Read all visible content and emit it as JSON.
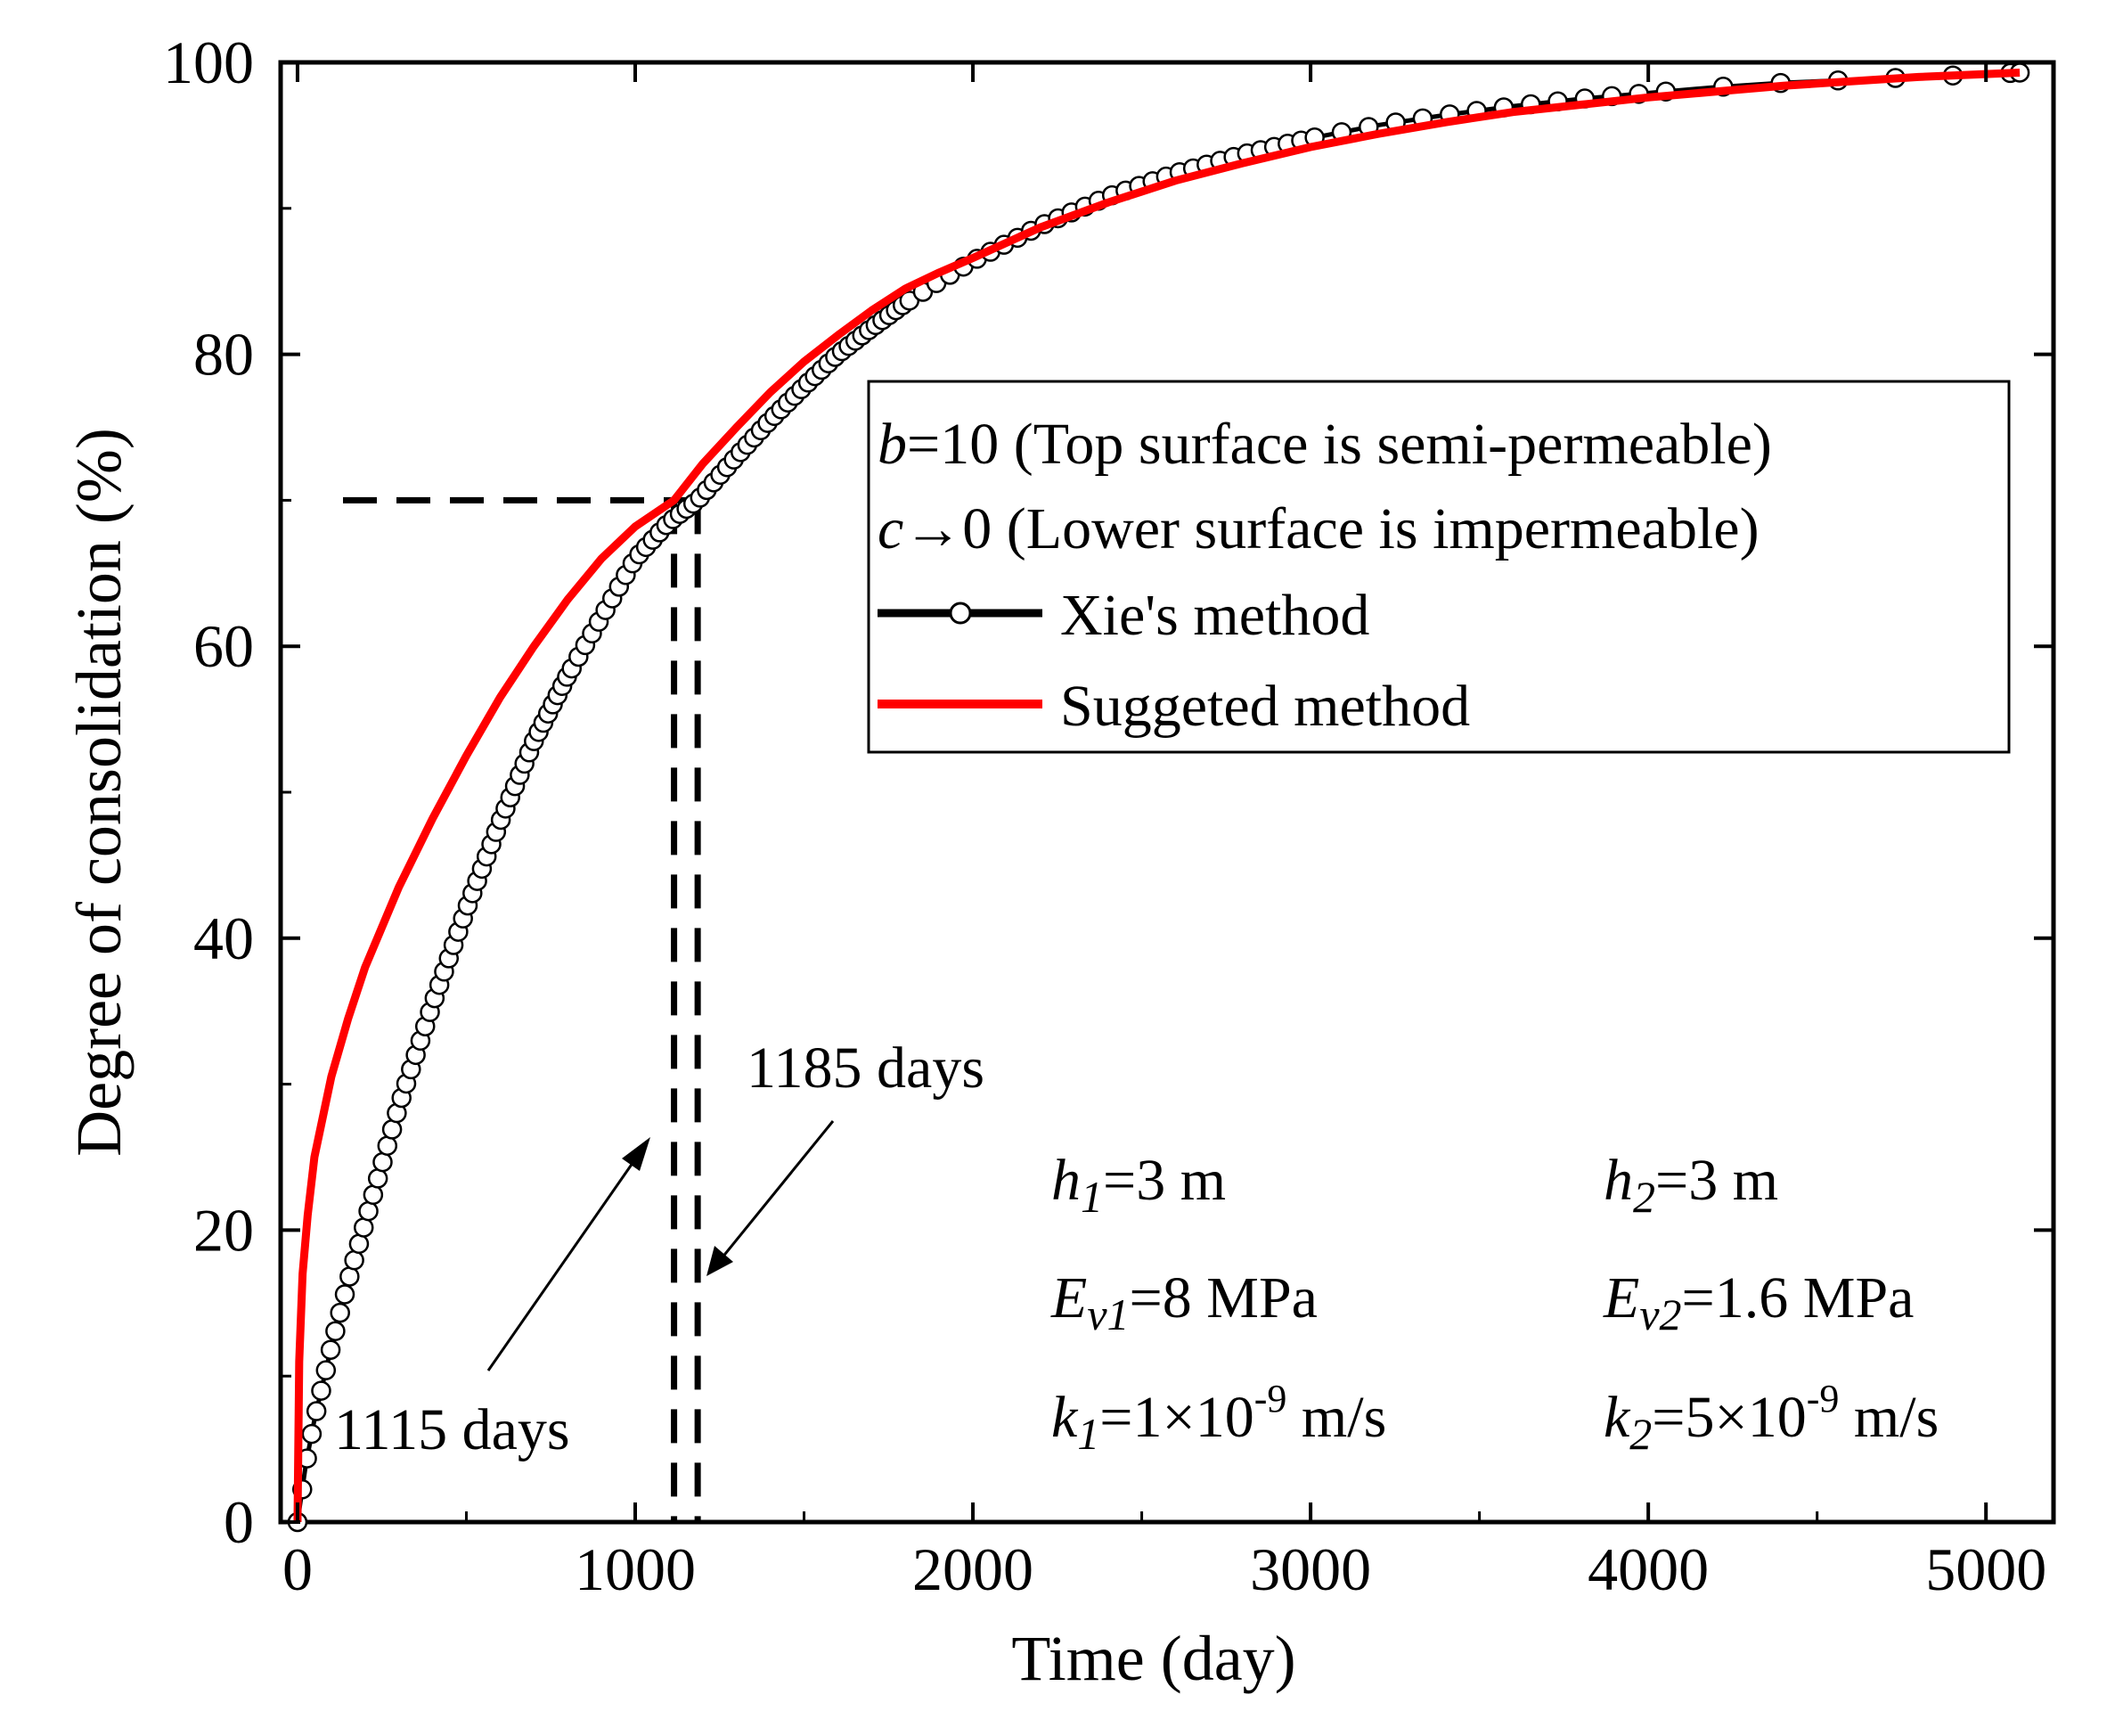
{
  "chart_data": {
    "type": "line",
    "xlabel": "Time (day)",
    "ylabel": "Degree of consolidation (%)",
    "xlim": [
      -50,
      5200
    ],
    "ylim": [
      0,
      100
    ],
    "x_ticks": [
      0,
      1000,
      2000,
      3000,
      4000,
      5000
    ],
    "y_ticks": [
      0,
      20,
      40,
      60,
      80,
      100
    ],
    "x_tick_labels": [
      "0",
      "1000",
      "2000",
      "3000",
      "4000",
      "5000"
    ],
    "y_tick_labels": [
      "0",
      "20",
      "40",
      "60",
      "80",
      "100"
    ],
    "grid": false,
    "legend_position": "upper-right",
    "legend_header": [
      {
        "var": "b",
        "text": "=10 (Top surface is semi-permeable)"
      },
      {
        "var": "c",
        "text": "→0 (Lower surface is impermeable)"
      }
    ],
    "series": [
      {
        "name": "Xie's method",
        "color": "#000000",
        "marker": "open-circle",
        "x": [
          0,
          25,
          50,
          100,
          150,
          200,
          250,
          300,
          350,
          400,
          500,
          600,
          700,
          800,
          900,
          1000,
          1100,
          1185,
          1300,
          1400,
          1500,
          1600,
          1700,
          1800,
          1900,
          2000,
          2200,
          2400,
          2600,
          2800,
          3000,
          3200,
          3400,
          3600,
          3800,
          4000,
          4200,
          4400,
          4600,
          4800,
          5000,
          5100
        ],
        "y": [
          0,
          4,
          7,
          12,
          16.5,
          20.5,
          24.5,
          28.5,
          32,
          35.5,
          42,
          48,
          53.5,
          58,
          62,
          66,
          68.5,
          70,
          73,
          75.5,
          77.8,
          80,
          81.8,
          83.5,
          85,
          86.4,
          88.8,
          90.8,
          92.4,
          93.7,
          94.8,
          95.7,
          96.4,
          97,
          97.5,
          97.9,
          98.3,
          98.6,
          98.8,
          99.0,
          99.2,
          99.3
        ]
      },
      {
        "name": "Suggeted method",
        "color": "#ff0000",
        "marker": "none",
        "x": [
          0,
          5,
          15,
          30,
          50,
          100,
          150,
          200,
          300,
          400,
          500,
          600,
          700,
          800,
          900,
          1000,
          1115,
          1200,
          1300,
          1400,
          1500,
          1600,
          1700,
          1800,
          1900,
          2000,
          2200,
          2400,
          2600,
          2800,
          3000,
          3200,
          3400,
          3600,
          3800,
          4000,
          4200,
          4400,
          4600,
          4800,
          5000,
          5100
        ],
        "y": [
          0,
          11,
          17,
          21,
          25,
          30.5,
          34.5,
          38,
          43.5,
          48.2,
          52.5,
          56.5,
          60,
          63.2,
          66,
          68.2,
          70,
          72.5,
          75,
          77.4,
          79.5,
          81.3,
          83,
          84.5,
          85.6,
          86.6,
          88.7,
          90.4,
          91.9,
          93.1,
          94.2,
          95.1,
          95.9,
          96.6,
          97.1,
          97.6,
          98.0,
          98.4,
          98.7,
          99.0,
          99.2,
          99.3
        ]
      }
    ],
    "reference_lines": {
      "y_level": 70,
      "x_values": [
        1115,
        1185
      ]
    },
    "annotations": [
      {
        "text": "1115 days",
        "target_x": 1115,
        "target_y": 28
      },
      {
        "text": "1185 days",
        "target_x": 1185,
        "target_y": 17
      }
    ],
    "parameters": [
      {
        "var": "h",
        "sub": "1",
        "text": "=3 m"
      },
      {
        "var": "h",
        "sub": "2",
        "text": "=3 m"
      },
      {
        "var": "E",
        "sub": "v1",
        "text": "=8 MPa"
      },
      {
        "var": "E",
        "sub": "v2",
        "text": "=1.6 MPa"
      },
      {
        "var": "k",
        "sub": "1",
        "text": "=1×10",
        "sup": "-9",
        "tail": " m/s"
      },
      {
        "var": "k",
        "sub": "2",
        "text": "=5×10",
        "sup": "-9",
        "tail": " m/s"
      }
    ]
  }
}
